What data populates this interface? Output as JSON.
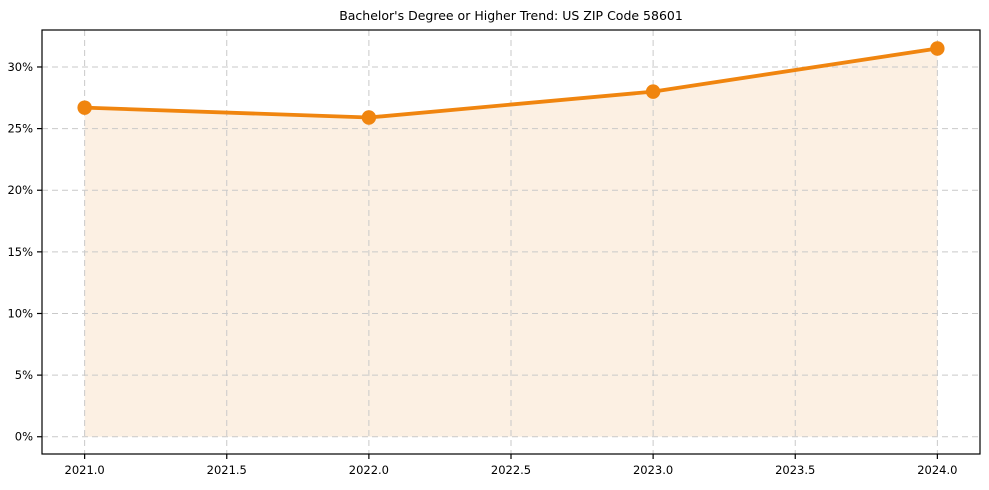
{
  "chart_data": {
    "type": "area",
    "title": "Bachelor's Degree or Higher Trend: US ZIP Code 58601",
    "x": [
      2021,
      2022,
      2023,
      2024
    ],
    "values": [
      26.7,
      25.9,
      28.0,
      31.5
    ],
    "baseline": 0,
    "xlabel": "",
    "ylabel": "",
    "xlim": [
      2020.85,
      2024.15
    ],
    "ylim": [
      -1.4,
      33.0
    ],
    "xticks": {
      "values": [
        2021.0,
        2021.5,
        2022.0,
        2022.5,
        2023.0,
        2023.5,
        2024.0
      ],
      "labels": [
        "2021.0",
        "2021.5",
        "2022.0",
        "2022.5",
        "2023.0",
        "2023.5",
        "2024.0"
      ]
    },
    "yticks": {
      "values": [
        0,
        5,
        10,
        15,
        20,
        25,
        30
      ],
      "labels": [
        "0%",
        "5%",
        "10%",
        "15%",
        "20%",
        "25%",
        "30%"
      ]
    },
    "grid": true,
    "grid_style": "dashed",
    "legend": false,
    "marker": "circle",
    "colors": {
      "line": "#f0850f",
      "marker": "#f0850f",
      "fill": "#fcf0e3",
      "grid": "#c9c9c9",
      "spine": "#000000",
      "text": "#000000"
    }
  }
}
